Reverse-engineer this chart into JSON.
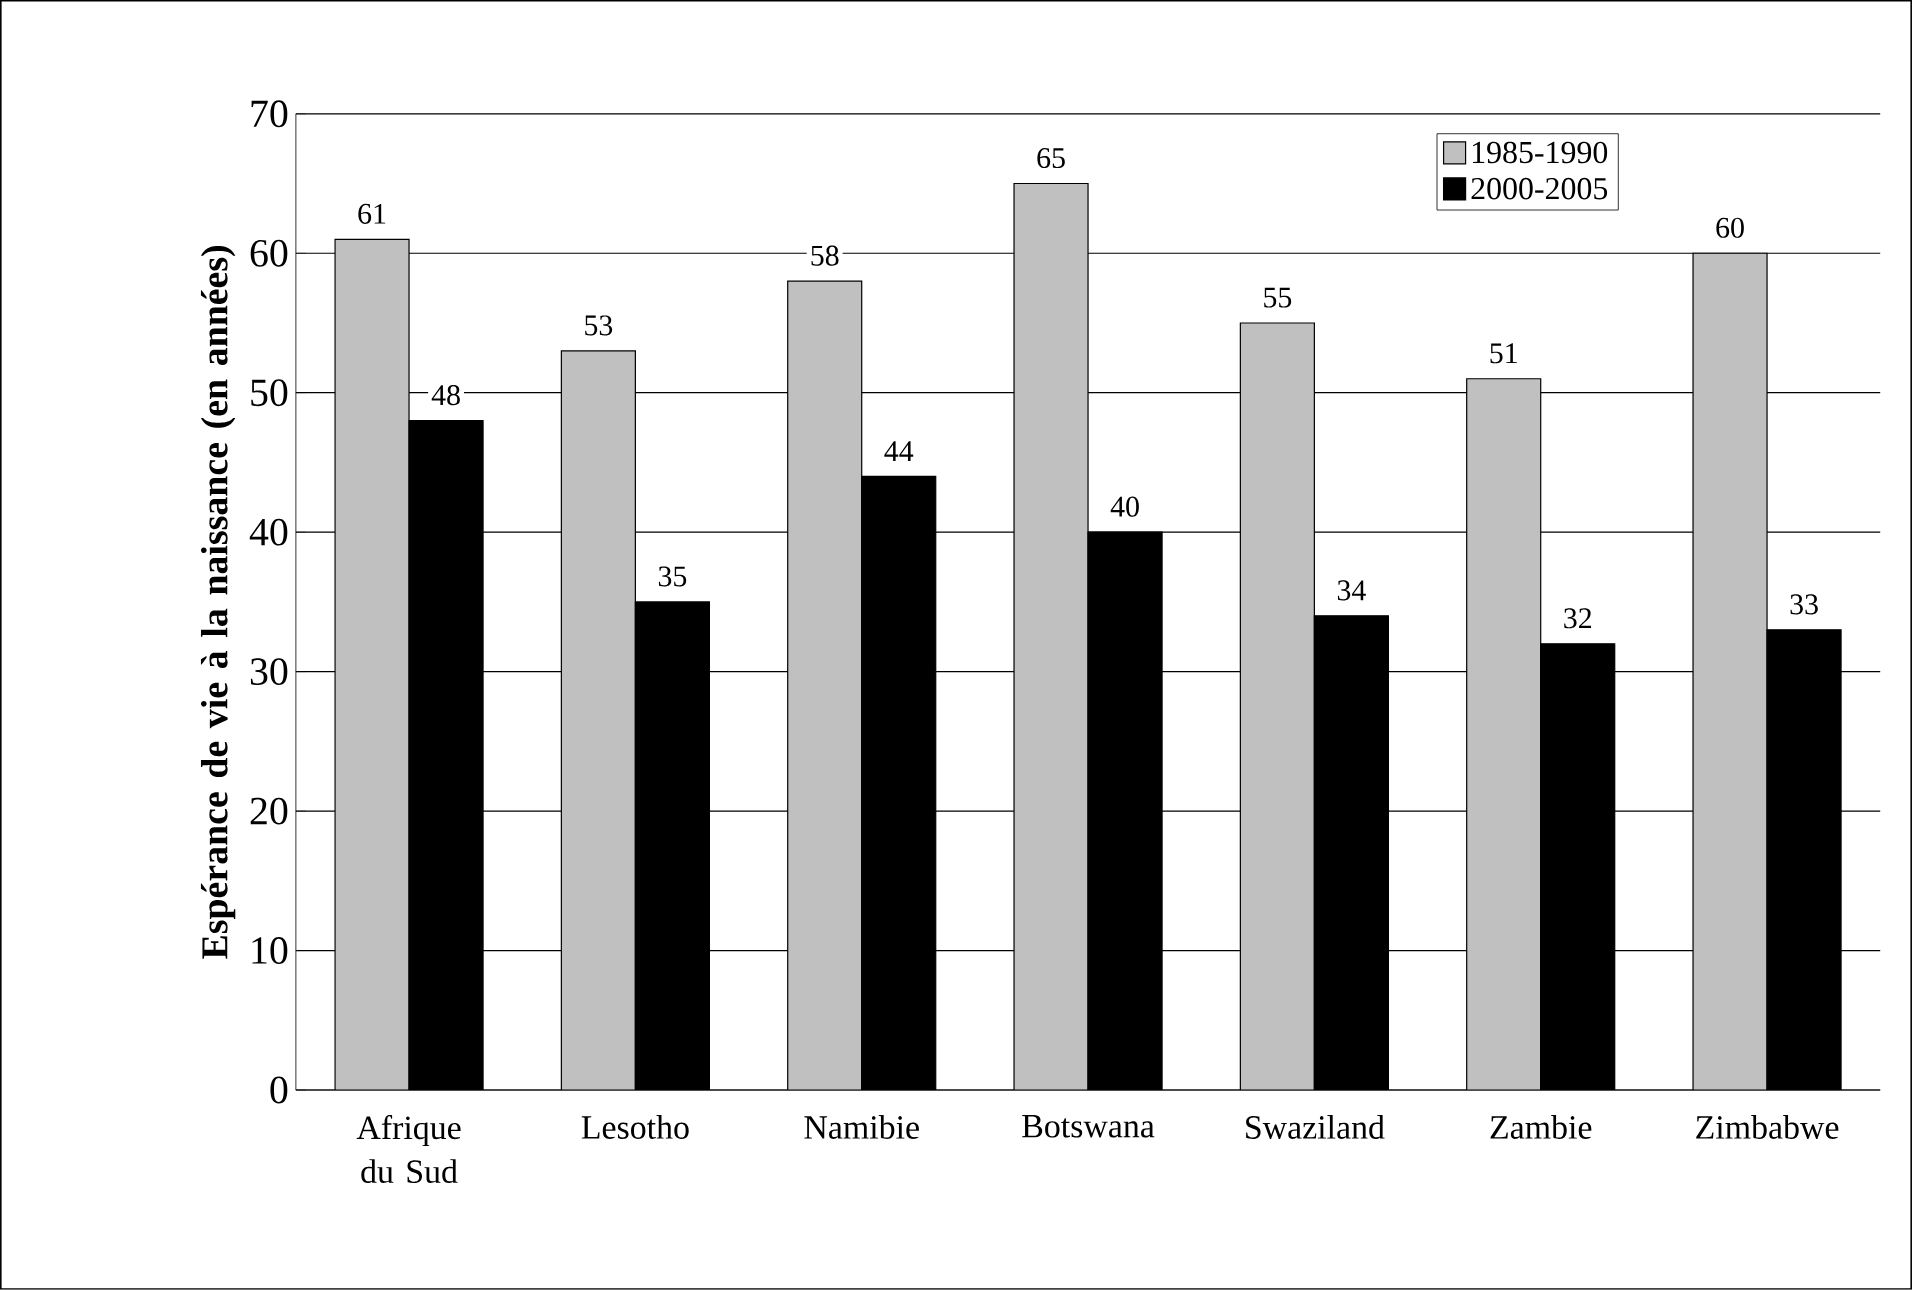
{
  "chart_data": {
    "type": "bar",
    "ylabel": "Espérance de vie à la naissance (en années)",
    "categories": [
      "Afrique du Sud",
      "Lesotho",
      "Namibie",
      "Botswana",
      "Swaziland",
      "Zambie",
      "Zimbabwe"
    ],
    "series": [
      {
        "name": "1985-1990",
        "color": "#c0c0c0",
        "values": [
          61,
          53,
          58,
          65,
          55,
          51,
          60
        ]
      },
      {
        "name": "2000-2005",
        "color": "#000000",
        "values": [
          48,
          35,
          44,
          40,
          34,
          32,
          33
        ]
      }
    ],
    "ylim": [
      0,
      70
    ],
    "yticks": [
      0,
      10,
      20,
      30,
      40,
      50,
      60,
      70
    ],
    "grid": "y",
    "legend": "top right",
    "data_labels": true
  }
}
